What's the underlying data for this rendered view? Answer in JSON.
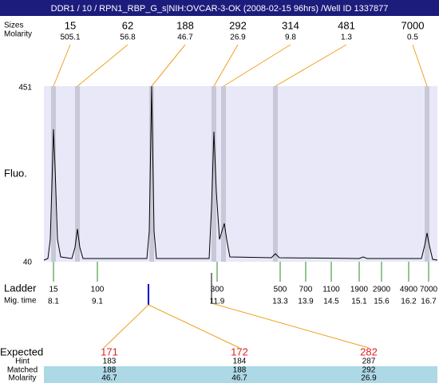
{
  "title_bar": "DDR1 / 10 / RPN1_RBP_G_s|NIH:OVCAR-3-OK (2008-02-15 96hrs) /Well ID 1337877",
  "peaks": {
    "labels": [
      "Sizes",
      "Molarity"
    ],
    "columns": [
      {
        "size": "15",
        "molarity": "505.1"
      },
      {
        "size": "62",
        "molarity": "56.8"
      },
      {
        "size": "188",
        "molarity": "46.7"
      },
      {
        "size": "292",
        "molarity": "26.9"
      },
      {
        "size": "314",
        "molarity": "9.8"
      },
      {
        "size": "481",
        "molarity": "1.3"
      },
      {
        "size": "7000",
        "molarity": "0.5"
      }
    ]
  },
  "plot": {
    "y_axis_label": "Fluo.",
    "y_top": "451",
    "y_bottom": "40"
  },
  "ladder": {
    "labels": [
      "Ladder",
      "Mig. time"
    ],
    "entries": [
      {
        "size": "15",
        "mig_time": "8.1"
      },
      {
        "size": "100",
        "mig_time": "9.1"
      },
      {
        "size": "300",
        "mig_time": "11.9"
      },
      {
        "size": "500",
        "mig_time": "13.3"
      },
      {
        "size": "700",
        "mig_time": "13.9"
      },
      {
        "size": "1100",
        "mig_time": "14.5"
      },
      {
        "size": "1900",
        "mig_time": "15.1"
      },
      {
        "size": "2900",
        "mig_time": "15.6"
      },
      {
        "size": "4900",
        "mig_time": "16.2"
      },
      {
        "size": "7000",
        "mig_time": "16.7"
      }
    ]
  },
  "expected": {
    "labels": [
      "Expected",
      "Hint",
      "Matched",
      "Molarity"
    ],
    "columns": [
      {
        "expected": "171",
        "hint": "183",
        "matched": "188",
        "molarity": "46.7"
      },
      {
        "expected": "172",
        "hint": "184",
        "matched": "188",
        "molarity": "46.7"
      },
      {
        "expected": "282",
        "hint": "287",
        "matched": "292",
        "molarity": "26.9"
      }
    ]
  }
}
